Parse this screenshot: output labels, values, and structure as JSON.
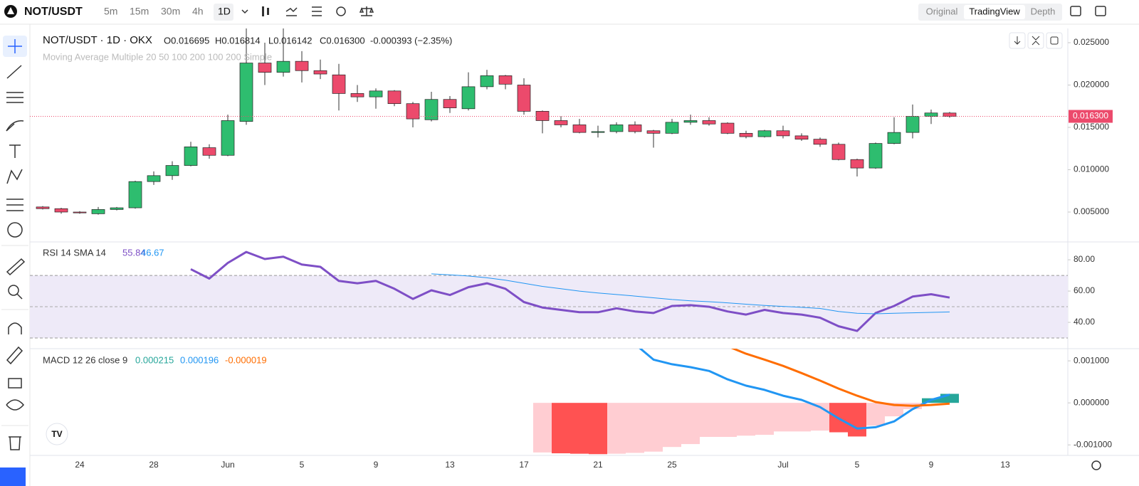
{
  "ui": {
    "symbol": "NOT/USDT",
    "intervals": [
      "5m",
      "15m",
      "30m",
      "4h",
      "1D"
    ],
    "active_interval": 4,
    "views": [
      "Original",
      "TradingView",
      "Depth"
    ],
    "active_view": 1
  },
  "chart_data": [
    {
      "type": "candlestick",
      "title": "NOT/USDT · 1D · OKX",
      "ohlc_legend": [
        "O0.016695",
        "H0.016814",
        "L0.016142",
        "C0.016300"
      ],
      "change": "-0.000393 (−2.35%)",
      "indicator": "Moving Average Multiple 20 50 100 200 100 200 Simple",
      "categories": [
        null,
        null,
        "24",
        null,
        null,
        null,
        "28",
        null,
        null,
        null,
        "Jun",
        null,
        null,
        null,
        "5",
        null,
        null,
        null,
        "9",
        null,
        null,
        null,
        "13",
        null,
        null,
        null,
        "17",
        null,
        null,
        null,
        "21",
        null,
        null,
        null,
        "25",
        null,
        null,
        null,
        null,
        null,
        "Jul",
        null,
        null,
        null,
        "5",
        null,
        null,
        null,
        "9",
        null,
        null,
        null,
        "13"
      ],
      "open": [
        0.0056,
        0.0054,
        0.005,
        0.0048,
        0.0053,
        0.0055,
        0.0086,
        0.0093,
        0.0105,
        0.0126,
        0.0117,
        0.0157,
        0.0226,
        0.0215,
        0.0228,
        0.0217,
        0.0212,
        0.019,
        0.0186,
        0.0193,
        0.0178,
        0.0159,
        0.0183,
        0.0172,
        0.0198,
        0.0211,
        0.02,
        0.0169,
        0.0158,
        0.0153,
        0.0144,
        0.0145,
        0.0153,
        0.0146,
        0.0143,
        0.0156,
        0.0158,
        0.0155,
        0.0143,
        0.0139,
        0.0146,
        0.014,
        0.0136,
        0.013,
        0.0112,
        0.0102,
        0.0131,
        0.0144,
        0.0163,
        0.016695,
        null,
        null,
        null
      ],
      "high": [
        0.0057,
        0.0055,
        0.0051,
        0.0056,
        0.0056,
        0.0087,
        0.0098,
        0.011,
        0.0133,
        0.013,
        0.0165,
        0.027,
        0.025,
        0.0275,
        0.024,
        0.023,
        0.0225,
        0.02,
        0.0196,
        0.0194,
        0.018,
        0.0192,
        0.0187,
        0.0215,
        0.0218,
        0.0212,
        0.0208,
        0.017,
        0.0163,
        0.016,
        0.0152,
        0.0156,
        0.0157,
        0.0147,
        0.016,
        0.0165,
        0.0162,
        0.0156,
        0.0146,
        0.0147,
        0.0152,
        0.0143,
        0.0138,
        0.0132,
        0.0113,
        0.0132,
        0.0162,
        0.0177,
        0.0171,
        0.016814,
        null,
        null,
        null
      ],
      "low": [
        0.0053,
        0.0048,
        0.0048,
        0.0047,
        0.0052,
        0.0054,
        0.0082,
        0.0088,
        0.0104,
        0.0113,
        0.0116,
        0.0153,
        0.02,
        0.021,
        0.0203,
        0.0207,
        0.017,
        0.018,
        0.0172,
        0.0175,
        0.015,
        0.0157,
        0.0167,
        0.017,
        0.0195,
        0.0195,
        0.0165,
        0.0143,
        0.015,
        0.0143,
        0.0138,
        0.0143,
        0.0143,
        0.0126,
        0.0142,
        0.0153,
        0.0152,
        0.0142,
        0.0137,
        0.0138,
        0.0137,
        0.0134,
        0.0127,
        0.0111,
        0.0092,
        0.0101,
        0.013,
        0.0137,
        0.0154,
        0.016142,
        null,
        null,
        null
      ],
      "close": [
        0.0054,
        0.005,
        0.0049,
        0.0053,
        0.0055,
        0.0086,
        0.0093,
        0.0105,
        0.0127,
        0.0117,
        0.0158,
        0.0226,
        0.0215,
        0.0228,
        0.0217,
        0.0213,
        0.019,
        0.0186,
        0.0193,
        0.0178,
        0.016,
        0.0183,
        0.0173,
        0.0198,
        0.0211,
        0.0201,
        0.0169,
        0.0158,
        0.0153,
        0.0144,
        0.0145,
        0.0153,
        0.0145,
        0.0143,
        0.0156,
        0.0158,
        0.0154,
        0.0143,
        0.0139,
        0.0146,
        0.014,
        0.0136,
        0.013,
        0.0112,
        0.0102,
        0.0131,
        0.0144,
        0.0163,
        0.0167,
        0.0163,
        null,
        null,
        null
      ],
      "up_color": "#2ebd6f",
      "down_color": "#ec4a6c",
      "ylim": [
        0.00147,
        0.02668
      ],
      "yticks": [
        {
          "value": 0.005,
          "label": "0.005000"
        },
        {
          "value": 0.01,
          "label": "0.010000"
        },
        {
          "value": 0.015,
          "label": "0.015000"
        },
        {
          "value": 0.02,
          "label": "0.020000"
        },
        {
          "value": 0.025,
          "label": "0.025000"
        }
      ],
      "last_price": {
        "value": 0.0163,
        "label": "0.016300"
      },
      "grid": false
    },
    {
      "type": "line",
      "title": "RSI 14 SMA 14",
      "series": [
        {
          "legend_value": "55.84",
          "color": "#7e4fc6",
          "width": 3,
          "values": [
            null,
            null,
            null,
            null,
            null,
            null,
            null,
            null,
            74,
            68,
            78,
            85,
            80.5,
            82,
            77,
            75.5,
            66.5,
            65,
            66.5,
            61.5,
            55,
            60.5,
            57.5,
            62.5,
            65,
            61.5,
            53,
            49.5,
            48,
            46.5,
            46.5,
            49,
            47,
            46,
            50.5,
            51,
            50,
            47,
            45,
            48,
            46,
            45,
            43,
            37.5,
            34.5,
            46,
            50.5,
            56.5,
            58,
            55.84,
            null,
            null,
            null
          ]
        },
        {
          "legend_value": "46.67",
          "color": "#2196f3",
          "width": 1,
          "values": [
            null,
            null,
            null,
            null,
            null,
            null,
            null,
            null,
            null,
            null,
            null,
            null,
            null,
            null,
            null,
            null,
            null,
            null,
            null,
            null,
            null,
            71,
            70.4,
            69.6,
            68.5,
            67,
            65,
            63,
            61.5,
            60,
            58.8,
            57.8,
            56.8,
            55.7,
            54.6,
            53.8,
            53.2,
            52.5,
            51.6,
            50.8,
            50.2,
            49.6,
            48.9,
            47,
            45.8,
            45.5,
            45.8,
            46.1,
            46.4,
            46.67,
            null,
            null,
            null
          ]
        }
      ],
      "band": [
        30,
        70
      ],
      "midline": 50,
      "band_color": "#eeeaf8",
      "ylim": [
        23.2,
        91.4
      ],
      "yticks": [
        {
          "value": 40,
          "label": "40.00"
        },
        {
          "value": 60,
          "label": "60.00"
        },
        {
          "value": 80,
          "label": "80.00"
        }
      ],
      "grid": false
    },
    {
      "type": "macd",
      "title": "MACD 12 26 close 9",
      "histogram": {
        "legend_value": "0.000215",
        "up_color": "#26a69a",
        "up_light_color": "#b2dfdb",
        "down_color": "#ff5252",
        "down_light_color": "#ffcdd2",
        "values": [
          null,
          null,
          null,
          null,
          null,
          null,
          null,
          null,
          null,
          null,
          null,
          null,
          null,
          null,
          null,
          null,
          null,
          null,
          null,
          null,
          null,
          null,
          null,
          null,
          null,
          null,
          null,
          -0.00118,
          -0.0012,
          -0.00121,
          -0.00122,
          -0.00121,
          -0.00119,
          -0.00116,
          -0.00105,
          -0.00098,
          -0.00081,
          -0.00081,
          -0.00078,
          -0.00076,
          -0.00068,
          -0.00068,
          -0.00066,
          -0.0007,
          -0.0008,
          -0.00054,
          -0.00032,
          -0.00015,
          0.00011,
          0.000215,
          null,
          null,
          null
        ]
      },
      "series": [
        {
          "legend_value": "0.000196",
          "color": "#2196f3",
          "values": [
            null,
            null,
            null,
            null,
            null,
            null,
            null,
            null,
            null,
            null,
            null,
            null,
            null,
            null,
            null,
            null,
            null,
            null,
            null,
            null,
            null,
            null,
            null,
            null,
            null,
            null,
            null,
            null,
            null,
            null,
            null,
            null,
            0.0014,
            0.00103,
            0.00092,
            0.00085,
            0.00076,
            0.00056,
            0.00041,
            0.00031,
            0.00017,
            7e-05,
            -0.0001,
            -0.00037,
            -0.00061,
            -0.00058,
            -0.00044,
            -0.00015,
            7e-05,
            0.000196,
            null,
            null,
            null
          ]
        },
        {
          "legend_value": "-0.000019",
          "color": "#ff6d00",
          "values": [
            null,
            null,
            null,
            null,
            null,
            null,
            null,
            null,
            null,
            null,
            null,
            null,
            null,
            null,
            null,
            null,
            null,
            null,
            null,
            null,
            null,
            null,
            null,
            null,
            null,
            null,
            null,
            null,
            null,
            null,
            null,
            null,
            null,
            null,
            null,
            null,
            null,
            0.00135,
            0.00117,
            0.00103,
            0.00088,
            0.00071,
            0.00053,
            0.00034,
            0.00017,
            2e-05,
            -5e-05,
            -7e-05,
            -5e-05,
            -1.9e-05,
            null,
            null,
            null
          ]
        }
      ],
      "ylim": [
        -0.00125,
        0.00129
      ],
      "yticks": [
        {
          "value": -0.001,
          "label": "-0.001000"
        },
        {
          "value": 0,
          "label": "0.000000"
        },
        {
          "value": 0.001,
          "label": "0.001000"
        }
      ],
      "grid": false
    }
  ]
}
